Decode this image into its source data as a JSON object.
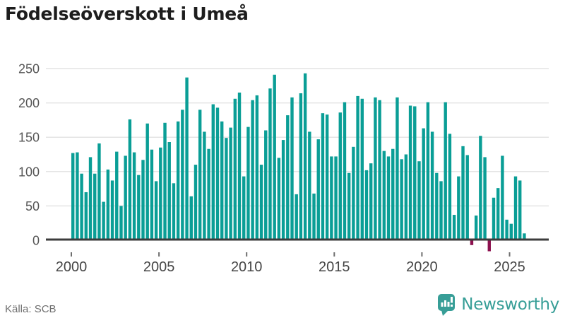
{
  "header": {
    "title": "Födelseöverskott i Umeå"
  },
  "footer": {
    "source": "Källa: SCB",
    "brand": "Newsworthy"
  },
  "colors": {
    "bar_positive": "#0a9e96",
    "bar_negative": "#8c104e",
    "brand_teal": "#379e97",
    "grid": "#e4e4e4",
    "zero_axis": "#3c3c3c"
  },
  "chart_data": {
    "type": "bar",
    "title": "Födelseöverskott i Umeå",
    "x_period": "quarterly",
    "x_start_year": 2000,
    "x_end_year": 2025,
    "values": [
      127,
      128,
      97,
      70,
      121,
      97,
      141,
      56,
      103,
      87,
      129,
      50,
      123,
      176,
      128,
      95,
      117,
      170,
      132,
      86,
      135,
      171,
      143,
      83,
      173,
      190,
      237,
      64,
      110,
      190,
      158,
      133,
      198,
      193,
      173,
      149,
      164,
      206,
      215,
      93,
      165,
      204,
      211,
      110,
      160,
      221,
      241,
      120,
      146,
      182,
      208,
      67,
      214,
      243,
      158,
      68,
      147,
      185,
      183,
      122,
      122,
      186,
      201,
      98,
      136,
      210,
      206,
      102,
      112,
      208,
      204,
      130,
      122,
      133,
      208,
      118,
      125,
      196,
      195,
      115,
      163,
      201,
      158,
      98,
      86,
      201,
      155,
      37,
      93,
      137,
      124,
      -7,
      36,
      152,
      121,
      -16,
      62,
      76,
      123,
      30,
      24,
      93,
      87,
      10
    ],
    "xtick_labels": [
      "2000",
      "2005",
      "2010",
      "2015",
      "2020",
      "2025"
    ],
    "ytick_values": [
      0,
      50,
      100,
      150,
      200,
      250
    ],
    "ylim": [
      -30,
      250
    ],
    "grid": "horizontal",
    "legend": "none",
    "ylabel": "",
    "xlabel": ""
  }
}
